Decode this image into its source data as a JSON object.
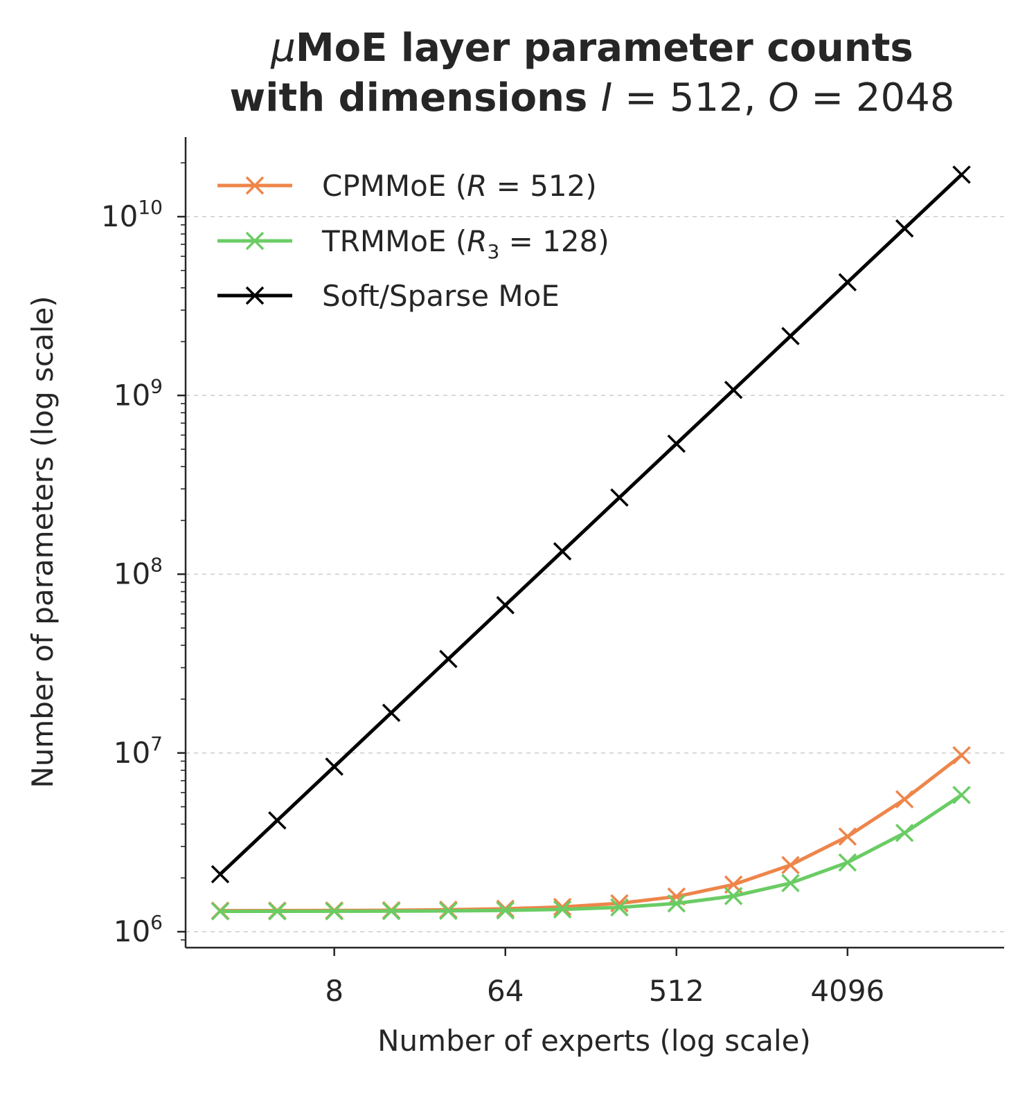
{
  "chart_data": {
    "type": "line",
    "title_line1_symbol": "μ",
    "title_line1_rest": "MoE layer parameter counts",
    "title_line2_prefix": "with dimensions ",
    "title_line2_I_var": "I",
    "title_line2_I_value": " = 512, ",
    "title_line2_O_var": "O",
    "title_line2_O_value": " = 2048",
    "xlabel": "Number of experts (log scale)",
    "ylabel": "Number of parameters (log scale)",
    "xscale": "log2",
    "yscale": "log10",
    "xlim": [
      2,
      16384
    ],
    "ylim": [
      850000,
      28000000000
    ],
    "x_ticks": [
      8,
      64,
      512,
      4096
    ],
    "x_tick_labels": [
      "8",
      "64",
      "512",
      "4096"
    ],
    "y_ticks": [
      1000000,
      10000000,
      100000000,
      1000000000,
      10000000000
    ],
    "y_tick_labels_base": "10",
    "y_tick_labels_exp": [
      "6",
      "7",
      "8",
      "9",
      "10"
    ],
    "grid": "y-major, dashed",
    "legend_position": "upper-left",
    "x": [
      2,
      4,
      8,
      16,
      32,
      64,
      128,
      256,
      512,
      1024,
      2048,
      4096,
      8192,
      16384
    ],
    "series": [
      {
        "name_prefix": "CPMMoE (",
        "name_var": "R",
        "name_sub": "",
        "name_suffix": " = 512)",
        "color": "#ee854a",
        "marker": "x",
        "values": [
          1311744,
          1312768,
          1314816,
          1318912,
          1327104,
          1343488,
          1376256,
          1441792,
          1572864,
          1835008,
          2359296,
          3407872,
          5505024,
          9699328
        ]
      },
      {
        "name_prefix": "TRMMoE (",
        "name_var": "R",
        "name_sub": "3",
        "name_suffix": " = 128)",
        "color": "#6acc64",
        "marker": "x",
        "values": [
          1300000,
          1300500,
          1301500,
          1303500,
          1307500,
          1316000,
          1333000,
          1368000,
          1440000,
          1583000,
          1870000,
          2440000,
          3570000,
          5820000
        ]
      },
      {
        "name": "Soft/Sparse MoE",
        "color": "#000000",
        "marker": "x",
        "values": [
          2097152,
          4194304,
          8388608,
          16777216,
          33554432,
          67108864,
          134217728,
          268435456,
          536870912,
          1073741824,
          2147483648,
          4294967296,
          8589934592,
          17179869184
        ]
      }
    ]
  }
}
